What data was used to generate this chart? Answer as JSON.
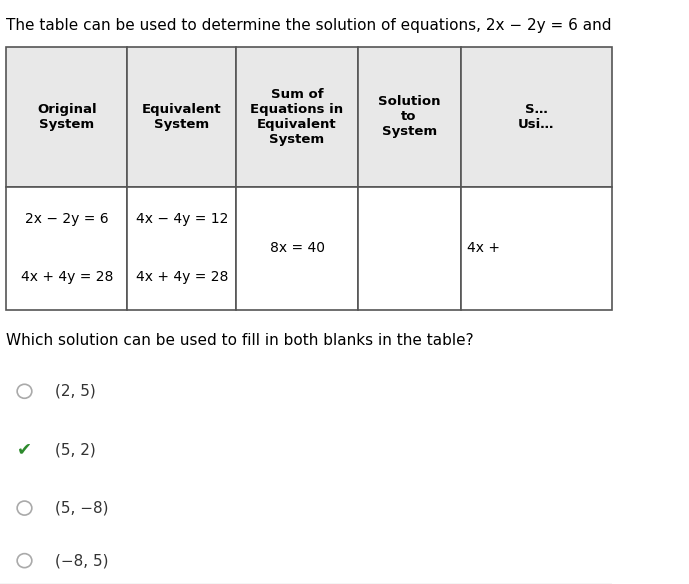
{
  "title_text": "The table can be used to determine the solution of equations, 2x − 2y = 6 and",
  "table_headers": [
    "Original\nSystem",
    "Equivalent\nSystem",
    "Sum of\nEquations in\nEquivalent\nSystem",
    "Solution\nto\nSystem",
    "S…\nUsi…"
  ],
  "table_row": [
    "2x − 2y = 6\n\n4x + 4y = 28",
    "4x − 4y = 12\n\n4x + 4y = 28",
    "8x = 40",
    "",
    "4x +"
  ],
  "question_text": "Which solution can be used to fill in both blanks in the table?",
  "options": [
    "(2, 5)",
    "(5, 2)",
    "(5, −8)",
    "(−8, 5)"
  ],
  "correct_index": 1,
  "bg_color": "#ffffff",
  "table_header_bg": "#e8e8e8",
  "table_border_color": "#555555",
  "text_color": "#000000",
  "option_text_color": "#333333",
  "checkmark_color": "#2d8a2d",
  "circle_color": "#aaaaaa",
  "separator_color": "#cccccc"
}
